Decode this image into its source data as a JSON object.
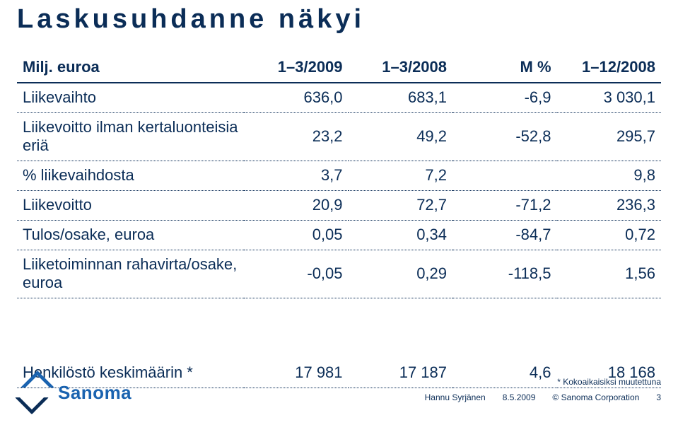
{
  "title": "Laskusuhdanne näkyi",
  "table": {
    "headers": {
      "label": "Milj. euroa",
      "c1": "1–3/2009",
      "c2": "1–3/2008",
      "c3": "M %",
      "c4": "1–12/2008"
    },
    "rows": [
      {
        "label": "Liikevaihto",
        "c1": "636,0",
        "c2": "683,1",
        "c3": "-6,9",
        "c4": "3 030,1"
      },
      {
        "label": "Liikevoitto ilman kertaluonteisia eriä",
        "c1": "23,2",
        "c2": "49,2",
        "c3": "-52,8",
        "c4": "295,7"
      },
      {
        "label": "% liikevaihdosta",
        "c1": "3,7",
        "c2": "7,2",
        "c3": "",
        "c4": "9,8"
      },
      {
        "label": "Liikevoitto",
        "c1": "20,9",
        "c2": "72,7",
        "c3": "-71,2",
        "c4": "236,3"
      },
      {
        "label": "Tulos/osake, euroa",
        "c1": "0,05",
        "c2": "0,34",
        "c3": "-84,7",
        "c4": "0,72"
      },
      {
        "label": "Liiketoiminnan rahavirta/osake, euroa",
        "c1": "-0,05",
        "c2": "0,29",
        "c3": "-118,5",
        "c4": "1,56"
      }
    ],
    "rows2": [
      {
        "label": "Henkilöstö keskimäärin *",
        "c1": "17 981",
        "c2": "17 187",
        "c3": "4,6",
        "c4": "18 168"
      }
    ]
  },
  "logo": {
    "text": "Sanoma"
  },
  "footer": {
    "note": "* Kokoaikaisiksi muutettuna",
    "author": "Hannu Syrjänen",
    "date": "8.5.2009",
    "copyright": "© Sanoma Corporation",
    "page": "3"
  },
  "colors": {
    "primary": "#0b2d57",
    "accent": "#1a63b0",
    "background": "#ffffff"
  }
}
